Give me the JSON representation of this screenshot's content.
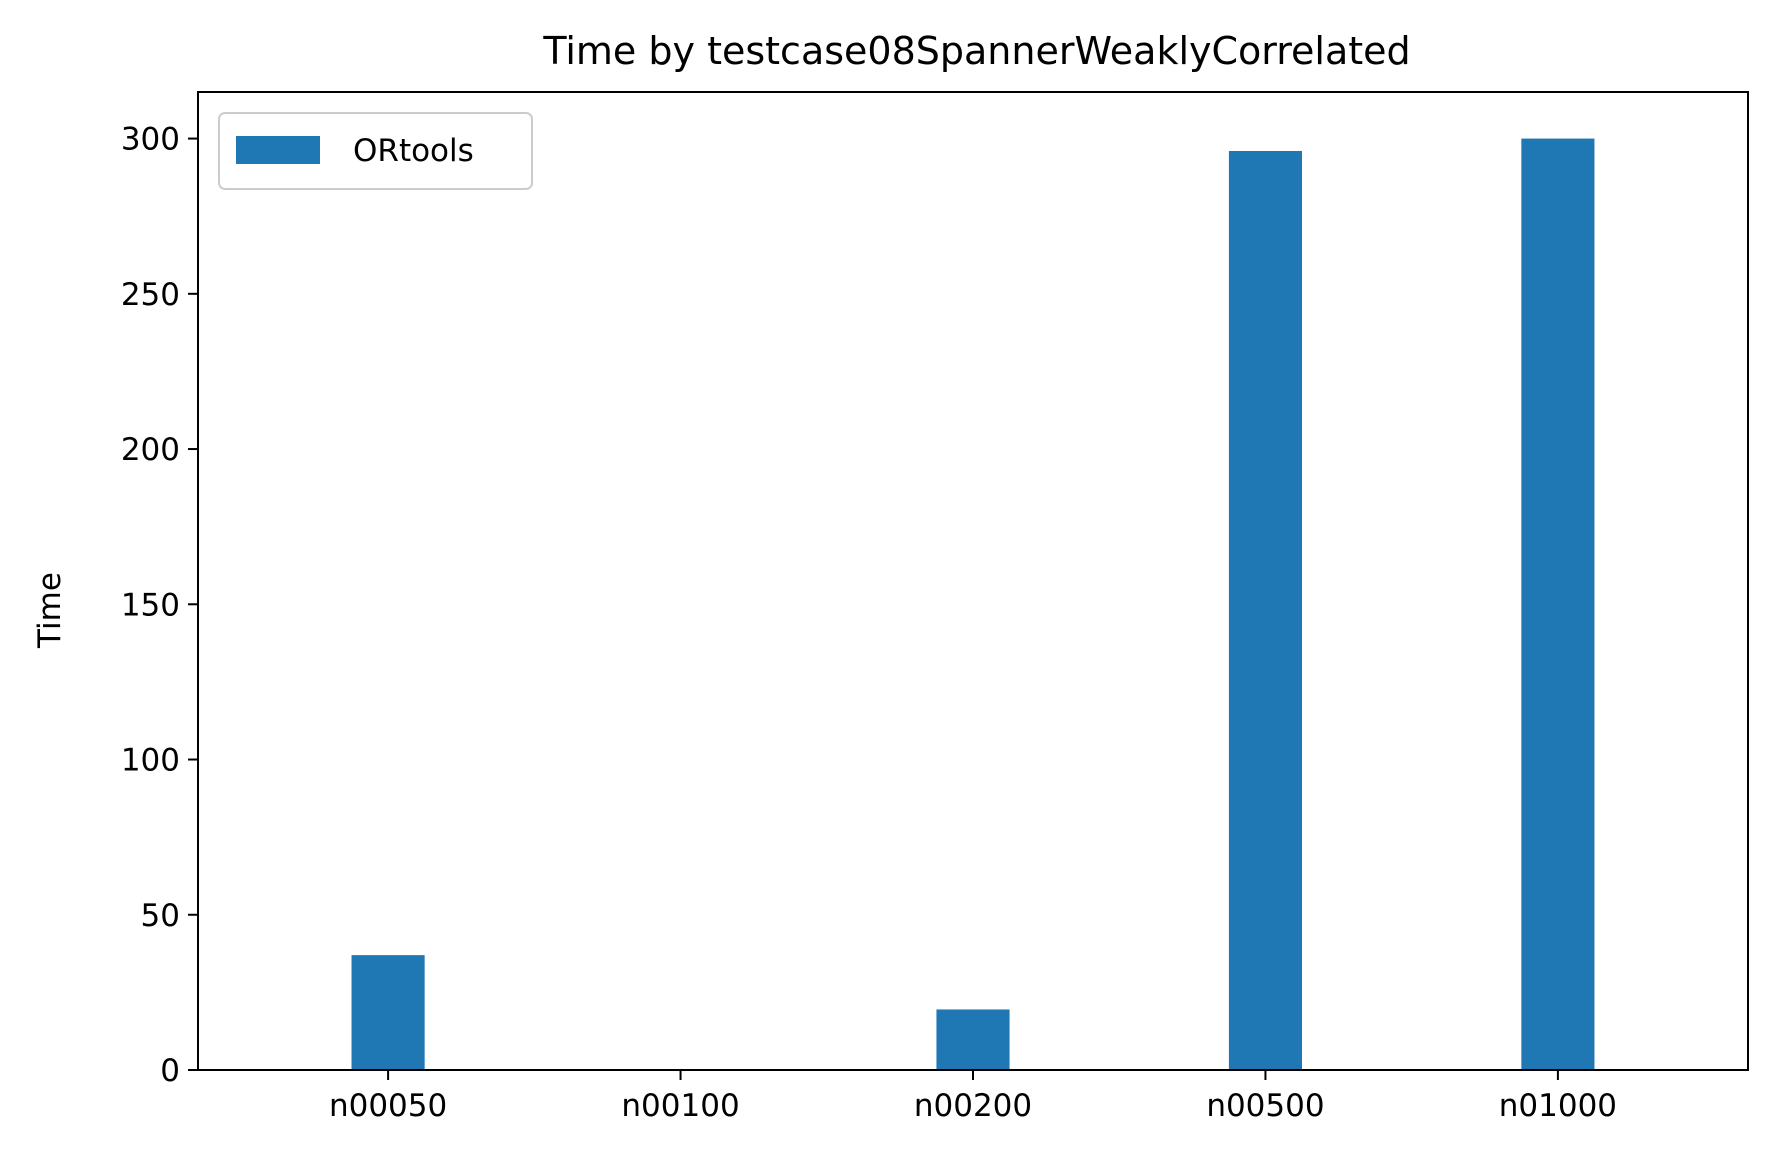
{
  "chart_data": {
    "type": "bar",
    "title": "Time by testcase08SpannerWeaklyCorrelated",
    "xlabel": "",
    "ylabel": "Time",
    "categories": [
      "n00050",
      "n00100",
      "n00200",
      "n00500",
      "n01000"
    ],
    "series": [
      {
        "name": "ORtools",
        "color": "#1f77b4",
        "values": [
          37,
          0,
          19.5,
          296,
          300
        ]
      }
    ],
    "ylim": [
      0,
      315
    ],
    "yticks": [
      0,
      50,
      100,
      150,
      200,
      250,
      300
    ],
    "grid": false,
    "legend": {
      "placement": "top-left"
    }
  }
}
